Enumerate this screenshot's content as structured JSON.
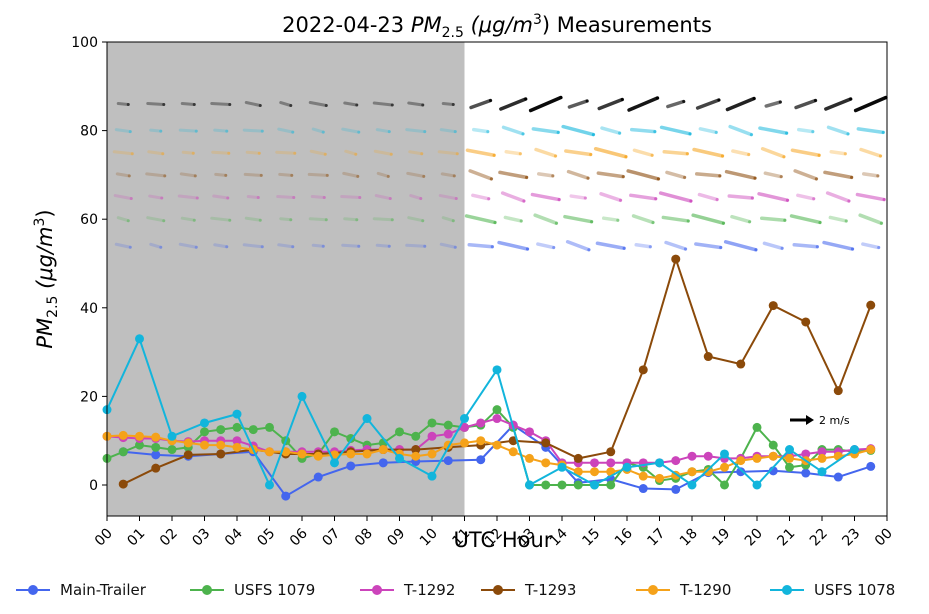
{
  "chart_data": {
    "type": "line",
    "title": "2022-04-23 PM2.5 (μg/m3) Measurements",
    "title_parts": {
      "prefix": "2022-04-23 ",
      "pm": "PM",
      "pm_sub": "2.5",
      "unit_open": " (μg/m",
      "unit_sup": "3",
      "unit_close": ") Measurements"
    },
    "xlabel": "UTC Hour",
    "ylabel": "PM2.5 (μg/m3)",
    "xlim": [
      0,
      24
    ],
    "ylim": [
      -7,
      100
    ],
    "x_ticks": [
      "00",
      "01",
      "02",
      "03",
      "04",
      "05",
      "06",
      "07",
      "08",
      "09",
      "10",
      "11",
      "12",
      "13",
      "14",
      "15",
      "16",
      "17",
      "18",
      "19",
      "20",
      "21",
      "22",
      "23",
      "00"
    ],
    "y_ticks": [
      0,
      20,
      40,
      60,
      80,
      100
    ],
    "shaded_region": [
      0,
      11
    ],
    "wind_scale_label": "2 m/s",
    "series": [
      {
        "name": "Main-Trailer",
        "color": "#4466ee",
        "x": [
          0.5,
          1.5,
          2.5,
          3.5,
          4.5,
          5.5,
          6.5,
          7.5,
          8.5,
          9.5,
          10.5,
          11.5,
          12.5,
          13.5,
          14.5,
          15.5,
          16.5,
          17.5,
          18.5,
          19.5,
          20.5,
          21.5,
          22.5,
          23.5
        ],
        "y": [
          7.5,
          6.8,
          6.5,
          7,
          7.5,
          -2.5,
          1.8,
          4.3,
          5,
          5.3,
          5.5,
          5.7,
          13.5,
          8.5,
          0.5,
          1.3,
          -0.8,
          -1,
          2.8,
          3,
          3.2,
          2.7,
          1.8,
          4.2
        ]
      },
      {
        "name": "USFS 1079",
        "color": "#4db34d",
        "x": [
          0,
          0.5,
          1,
          1.5,
          2,
          2.5,
          3,
          3.5,
          4,
          4.5,
          5,
          5.5,
          6,
          6.5,
          7,
          7.5,
          8,
          8.5,
          9,
          9.5,
          10,
          10.5,
          11,
          11.5,
          12,
          12.5,
          13,
          13.5,
          14,
          14.5,
          15,
          15.5,
          16,
          16.5,
          17,
          17.5,
          18,
          18.5,
          19,
          19.5,
          20,
          20.5,
          21,
          21.5,
          22,
          22.5,
          23,
          23.5
        ],
        "y": [
          6,
          7.5,
          9,
          8.5,
          8,
          8.5,
          12,
          12.5,
          13,
          12.5,
          13,
          10,
          6,
          7,
          12,
          10.5,
          9,
          9.5,
          12,
          11,
          14,
          13.5,
          13,
          13.5,
          17,
          13,
          0,
          0,
          0,
          0,
          0,
          0,
          5,
          4,
          1,
          1.5,
          3,
          3.5,
          0,
          6,
          13,
          9,
          4,
          4.5,
          8,
          8,
          7.5,
          7.8
        ]
      },
      {
        "name": "T-1292",
        "color": "#cc44bb",
        "x": [
          0,
          0.5,
          1,
          1.5,
          2,
          2.5,
          3,
          3.5,
          4,
          4.5,
          5,
          5.5,
          6,
          6.5,
          7,
          7.5,
          8,
          8.5,
          9,
          9.5,
          10,
          10.5,
          11,
          11.5,
          12,
          12.5,
          13,
          13.5,
          14,
          14.5,
          15,
          15.5,
          16,
          16.5,
          17,
          17.5,
          18,
          18.5,
          19,
          19.5,
          20,
          20.5,
          21,
          21.5,
          22,
          22.5,
          23,
          23.5
        ],
        "y": [
          11,
          10.7,
          10.5,
          10.5,
          10,
          9.8,
          10,
          10,
          10,
          8.8,
          7.5,
          7.5,
          7.5,
          7.5,
          7.5,
          7.8,
          8,
          8,
          8,
          8,
          11,
          11.5,
          13,
          14,
          15,
          13.5,
          12,
          10,
          5,
          5,
          5,
          5,
          5,
          5,
          5,
          5.5,
          6.5,
          6.5,
          6,
          6,
          6.5,
          6.5,
          6.5,
          7,
          7.5,
          7.5,
          8,
          8.2
        ]
      },
      {
        "name": "T-1293",
        "color": "#8b4a0a",
        "x": [
          0.5,
          1.5,
          2.5,
          3.5,
          4.5,
          5.5,
          6.5,
          7.5,
          8.5,
          9.5,
          10.5,
          11.5,
          12.5,
          13.5,
          14.5,
          15.5,
          16.5,
          17.5,
          18.5,
          19.5,
          20.5,
          21.5,
          22.5,
          23.5
        ],
        "y": [
          0.2,
          3.8,
          6.8,
          7,
          8,
          7,
          7,
          7.5,
          8,
          8,
          8.5,
          9,
          10,
          9.5,
          6,
          7.5,
          26,
          51,
          29,
          27.3,
          40.5,
          36.8,
          21.3,
          40.6
        ]
      },
      {
        "name": "T-1290",
        "color": "#f5a21a",
        "x": [
          0,
          0.5,
          1,
          1.5,
          2,
          2.5,
          3,
          3.5,
          4,
          4.5,
          5,
          5.5,
          6,
          6.5,
          7,
          7.5,
          8,
          8.5,
          9,
          9.5,
          10,
          10.5,
          11,
          11.5,
          12,
          12.5,
          13,
          13.5,
          14,
          14.5,
          15,
          15.5,
          16,
          16.5,
          17,
          17.5,
          18,
          18.5,
          19,
          19.5,
          20,
          20.5,
          21,
          21.5,
          22,
          22.5,
          23,
          23.5
        ],
        "y": [
          11,
          11.2,
          11,
          10.8,
          10,
          9.5,
          9,
          9,
          8.5,
          8,
          7.5,
          7.5,
          7,
          6.5,
          6.8,
          7,
          7,
          8,
          7,
          6.5,
          7,
          9,
          9.5,
          10,
          9,
          7.5,
          6,
          5,
          4.5,
          3,
          3,
          3,
          3.5,
          2,
          1.5,
          2.2,
          3,
          3,
          4,
          5.5,
          6,
          6.5,
          6,
          5.5,
          6,
          6.5,
          7,
          8
        ]
      },
      {
        "name": "USFS 1078",
        "color": "#12b5dc",
        "x": [
          0,
          1,
          2,
          3,
          4,
          5,
          6,
          7,
          8,
          9,
          10,
          11,
          12,
          13,
          14,
          15,
          16,
          17,
          18,
          19,
          20,
          21,
          22,
          23
        ],
        "y": [
          17,
          33,
          11,
          14,
          16,
          0,
          20,
          5,
          15,
          6,
          2,
          15,
          26,
          0,
          4,
          0,
          4,
          5,
          0,
          7,
          0,
          8,
          3,
          8
        ]
      }
    ]
  }
}
